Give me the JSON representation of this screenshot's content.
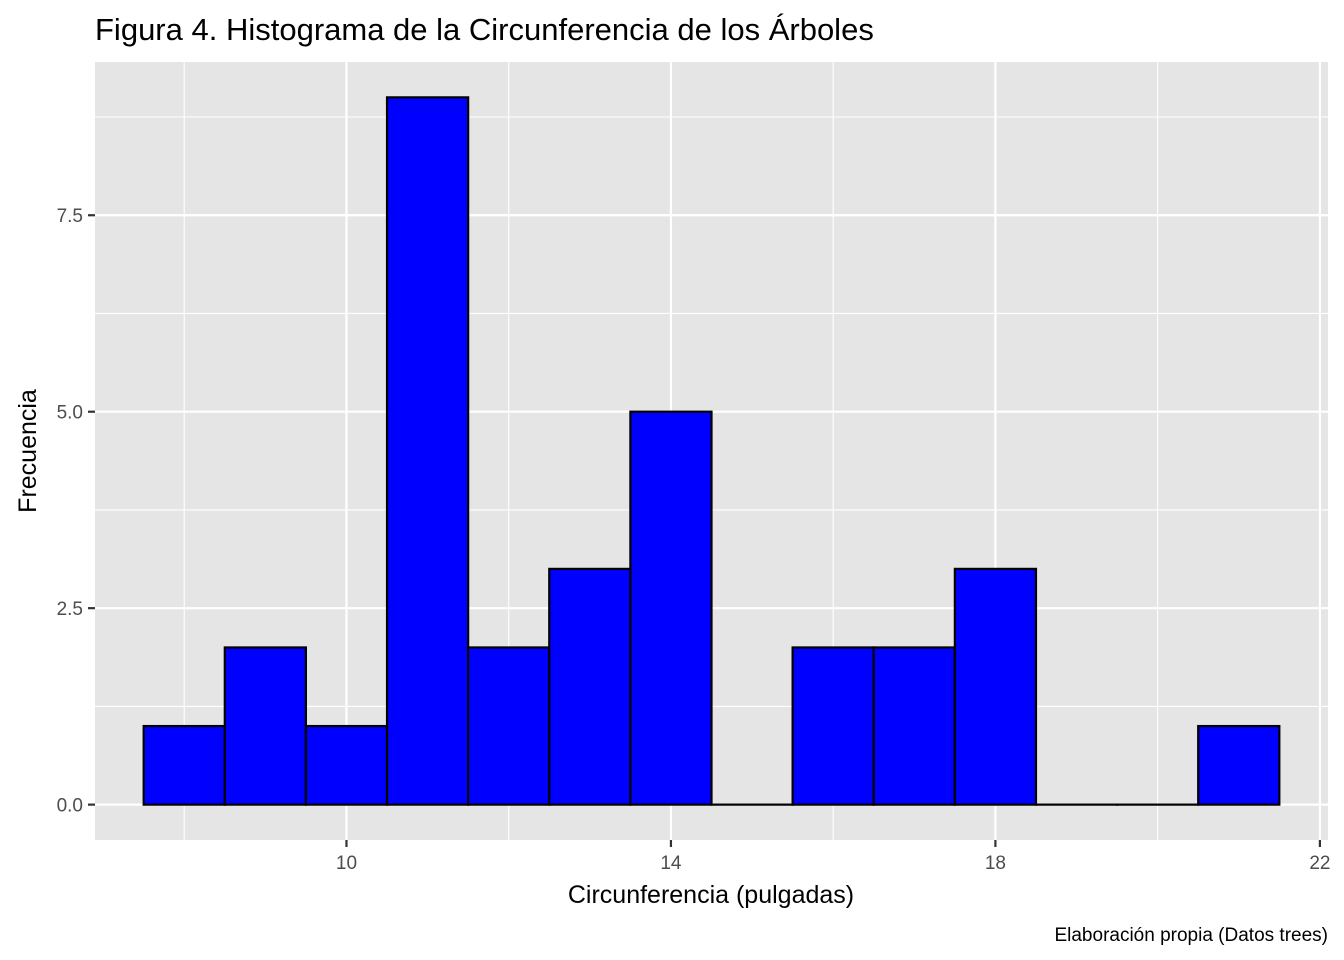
{
  "chart_data": {
    "type": "bar",
    "title": "Figura 4. Histograma de la Circunferencia de los Árboles",
    "xlabel": "Circunferencia (pulgadas)",
    "ylabel": "Frecuencia",
    "caption": "Elaboración propia (Datos trees)",
    "bin_width": 1,
    "bin_centers": [
      8,
      9,
      10,
      11,
      12,
      13,
      14,
      15,
      16,
      17,
      18,
      19,
      20,
      21
    ],
    "values": [
      1,
      2,
      1,
      9,
      2,
      3,
      5,
      0,
      2,
      2,
      3,
      0,
      0,
      1
    ],
    "xlim": [
      6.9,
      22.1
    ],
    "ylim": [
      -0.45,
      9.45
    ],
    "x_ticks": [
      10,
      14,
      18,
      22
    ],
    "x_tick_labels": [
      "10",
      "14",
      "18",
      "22"
    ],
    "y_ticks": [
      0,
      2.5,
      5,
      7.5
    ],
    "y_tick_labels": [
      "0.0",
      "2.5",
      "5.0",
      "7.5"
    ],
    "grid": true,
    "bar_fill": "#0000ff",
    "bar_stroke": "#000000",
    "panel_background": "#e5e5e5",
    "grid_color": "#ffffff"
  }
}
